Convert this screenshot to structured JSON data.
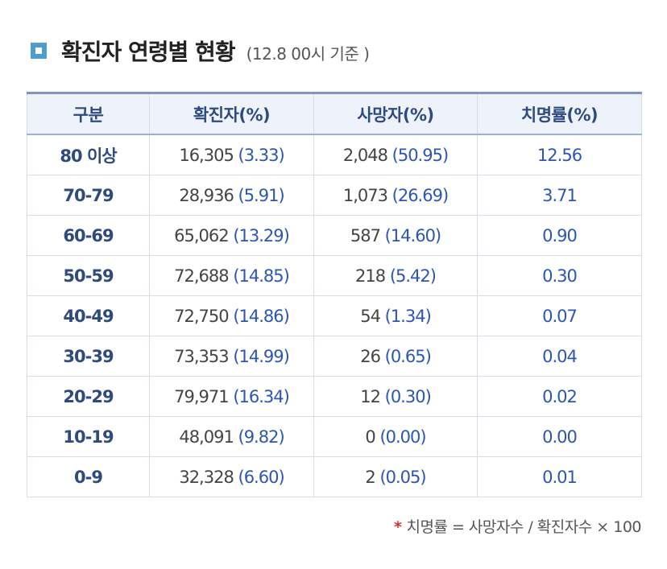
{
  "title": {
    "main": "확진자 연령별 현황",
    "sub": "(12.8 00시 기준 )"
  },
  "table": {
    "headers": [
      "구분",
      "확진자(%)",
      "사망자(%)",
      "치명률(%)"
    ],
    "rows": [
      {
        "age": "80 이상",
        "confirmed": "16,305",
        "confirmed_pct": "(3.33)",
        "deaths": "2,048",
        "deaths_pct": "(50.95)",
        "fatality": "12.56"
      },
      {
        "age": "70-79",
        "confirmed": "28,936",
        "confirmed_pct": "(5.91)",
        "deaths": "1,073",
        "deaths_pct": "(26.69)",
        "fatality": "3.71"
      },
      {
        "age": "60-69",
        "confirmed": "65,062",
        "confirmed_pct": "(13.29)",
        "deaths": "587",
        "deaths_pct": "(14.60)",
        "fatality": "0.90"
      },
      {
        "age": "50-59",
        "confirmed": "72,688",
        "confirmed_pct": "(14.85)",
        "deaths": "218",
        "deaths_pct": "(5.42)",
        "fatality": "0.30"
      },
      {
        "age": "40-49",
        "confirmed": "72,750",
        "confirmed_pct": "(14.86)",
        "deaths": "54",
        "deaths_pct": "(1.34)",
        "fatality": "0.07"
      },
      {
        "age": "30-39",
        "confirmed": "73,353",
        "confirmed_pct": "(14.99)",
        "deaths": "26",
        "deaths_pct": "(0.65)",
        "fatality": "0.04"
      },
      {
        "age": "20-29",
        "confirmed": "79,971",
        "confirmed_pct": "(16.34)",
        "deaths": "12",
        "deaths_pct": "(0.30)",
        "fatality": "0.02"
      },
      {
        "age": "10-19",
        "confirmed": "48,091",
        "confirmed_pct": "(9.82)",
        "deaths": "0",
        "deaths_pct": "(0.00)",
        "fatality": "0.00"
      },
      {
        "age": "0-9",
        "confirmed": "32,328",
        "confirmed_pct": "(6.60)",
        "deaths": "2",
        "deaths_pct": "(0.05)",
        "fatality": "0.01"
      }
    ]
  },
  "footnote": {
    "marker": "*",
    "text": "치명률 = 사망자수 / 확진자수 × 100"
  },
  "colors": {
    "accent": "#4f9cd1",
    "header_bg": "#eef2fa",
    "header_text": "#2e4a7e",
    "value_blue": "#2c55b4",
    "footnote_marker": "#d62f2f"
  }
}
